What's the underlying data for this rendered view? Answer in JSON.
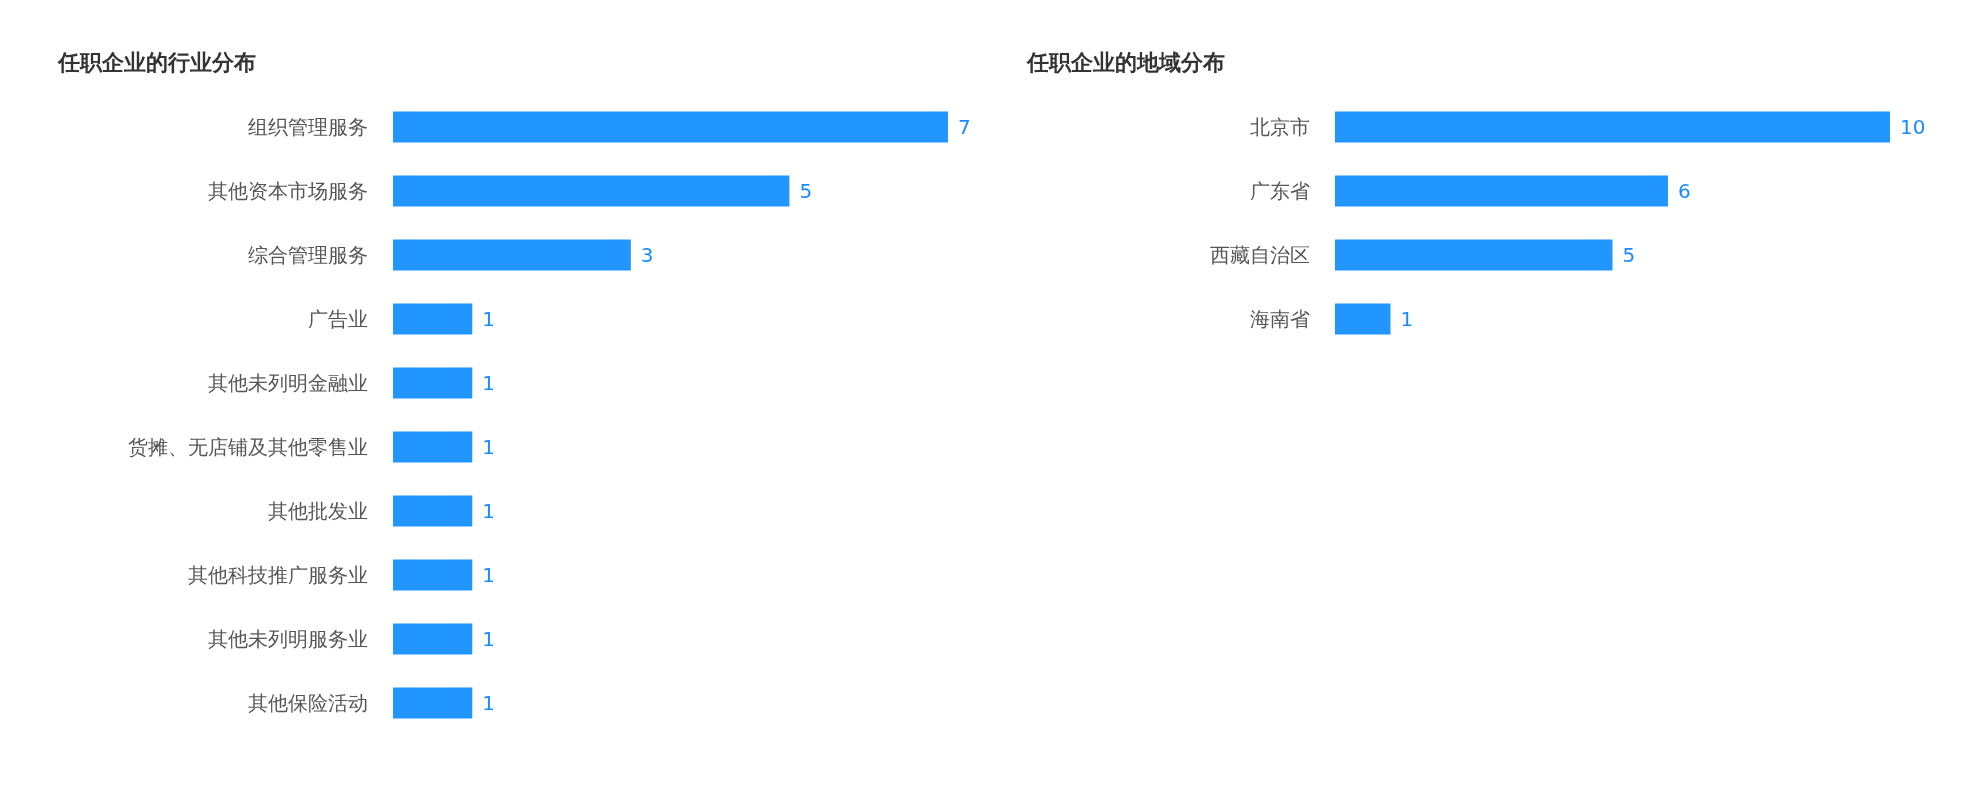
{
  "chart_data": [
    {
      "type": "bar",
      "orientation": "horizontal",
      "title": "任职企业的行业分布",
      "categories": [
        "组织管理服务",
        "其他资本市场服务",
        "综合管理服务",
        "广告业",
        "其他未列明金融业",
        "货摊、无店铺及其他零售业",
        "其他批发业",
        "其他科技推广服务业",
        "其他未列明服务业",
        "其他保险活动"
      ],
      "values": [
        7,
        5,
        3,
        1,
        1,
        1,
        1,
        1,
        1,
        1
      ],
      "color": "#2196ff",
      "data_labels": true
    },
    {
      "type": "bar",
      "orientation": "horizontal",
      "title": "任职企业的地域分布",
      "categories": [
        "北京市",
        "广东省",
        "西藏自治区",
        "海南省"
      ],
      "values": [
        10,
        6,
        5,
        1
      ],
      "color": "#2196ff",
      "data_labels": true
    }
  ]
}
